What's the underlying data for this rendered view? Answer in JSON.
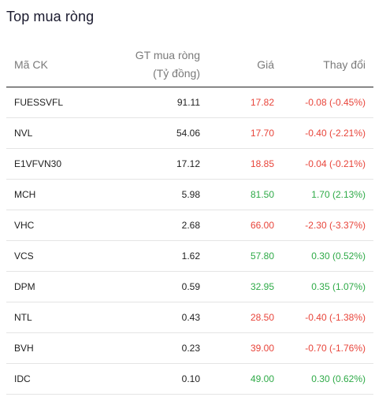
{
  "title": "Top mua ròng",
  "columns": {
    "symbol": "Mã CK",
    "net_value_line1": "GT mua ròng",
    "net_value_line2": "(Tỷ đồng)",
    "price": "Giá",
    "change": "Thay đổi"
  },
  "colors": {
    "up": "#2eaa47",
    "down": "#e8443a"
  },
  "rows": [
    {
      "symbol": "FUESSVFL",
      "net_value": "91.11",
      "price": "17.82",
      "change": "-0.08 (-0.45%)",
      "trend": "down"
    },
    {
      "symbol": "NVL",
      "net_value": "54.06",
      "price": "17.70",
      "change": "-0.40 (-2.21%)",
      "trend": "down"
    },
    {
      "symbol": "E1VFVN30",
      "net_value": "17.12",
      "price": "18.85",
      "change": "-0.04 (-0.21%)",
      "trend": "down"
    },
    {
      "symbol": "MCH",
      "net_value": "5.98",
      "price": "81.50",
      "change": "1.70 (2.13%)",
      "trend": "up"
    },
    {
      "symbol": "VHC",
      "net_value": "2.68",
      "price": "66.00",
      "change": "-2.30 (-3.37%)",
      "trend": "down"
    },
    {
      "symbol": "VCS",
      "net_value": "1.62",
      "price": "57.80",
      "change": "0.30 (0.52%)",
      "trend": "up"
    },
    {
      "symbol": "DPM",
      "net_value": "0.59",
      "price": "32.95",
      "change": "0.35 (1.07%)",
      "trend": "up"
    },
    {
      "symbol": "NTL",
      "net_value": "0.43",
      "price": "28.50",
      "change": "-0.40 (-1.38%)",
      "trend": "down"
    },
    {
      "symbol": "BVH",
      "net_value": "0.23",
      "price": "39.00",
      "change": "-0.70 (-1.76%)",
      "trend": "down"
    },
    {
      "symbol": "IDC",
      "net_value": "0.10",
      "price": "49.00",
      "change": "0.30 (0.62%)",
      "trend": "up"
    }
  ]
}
